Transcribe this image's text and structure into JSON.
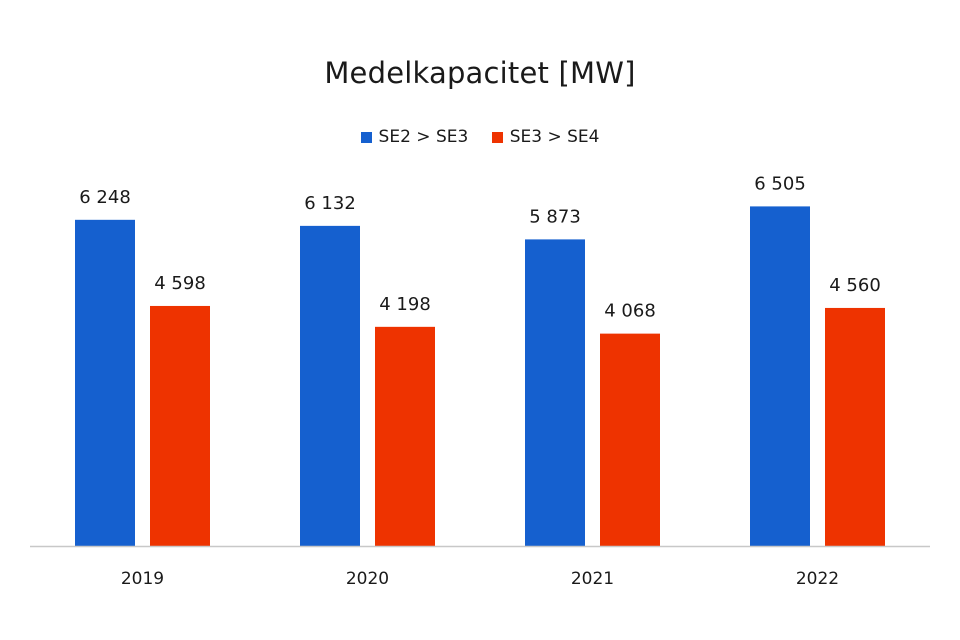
{
  "chart_data": {
    "type": "bar",
    "title": "Medelkapacitet [MW]",
    "categories": [
      "2019",
      "2020",
      "2021",
      "2022"
    ],
    "series": [
      {
        "name": "SE2 > SE3",
        "color": "#1560cf",
        "values": [
          6248,
          6132,
          5873,
          6505
        ],
        "labels": [
          "6 248",
          "6 132",
          "5 873",
          "6 505"
        ]
      },
      {
        "name": "SE3 > SE4",
        "color": "#ee3300",
        "values": [
          4598,
          4198,
          4068,
          4560
        ],
        "labels": [
          "4 598",
          "4 198",
          "4 068",
          "4 560"
        ]
      }
    ],
    "ylim": [
      0,
      7000
    ],
    "grid": false,
    "legend_position": "top-center",
    "xlabel": "",
    "ylabel": ""
  }
}
